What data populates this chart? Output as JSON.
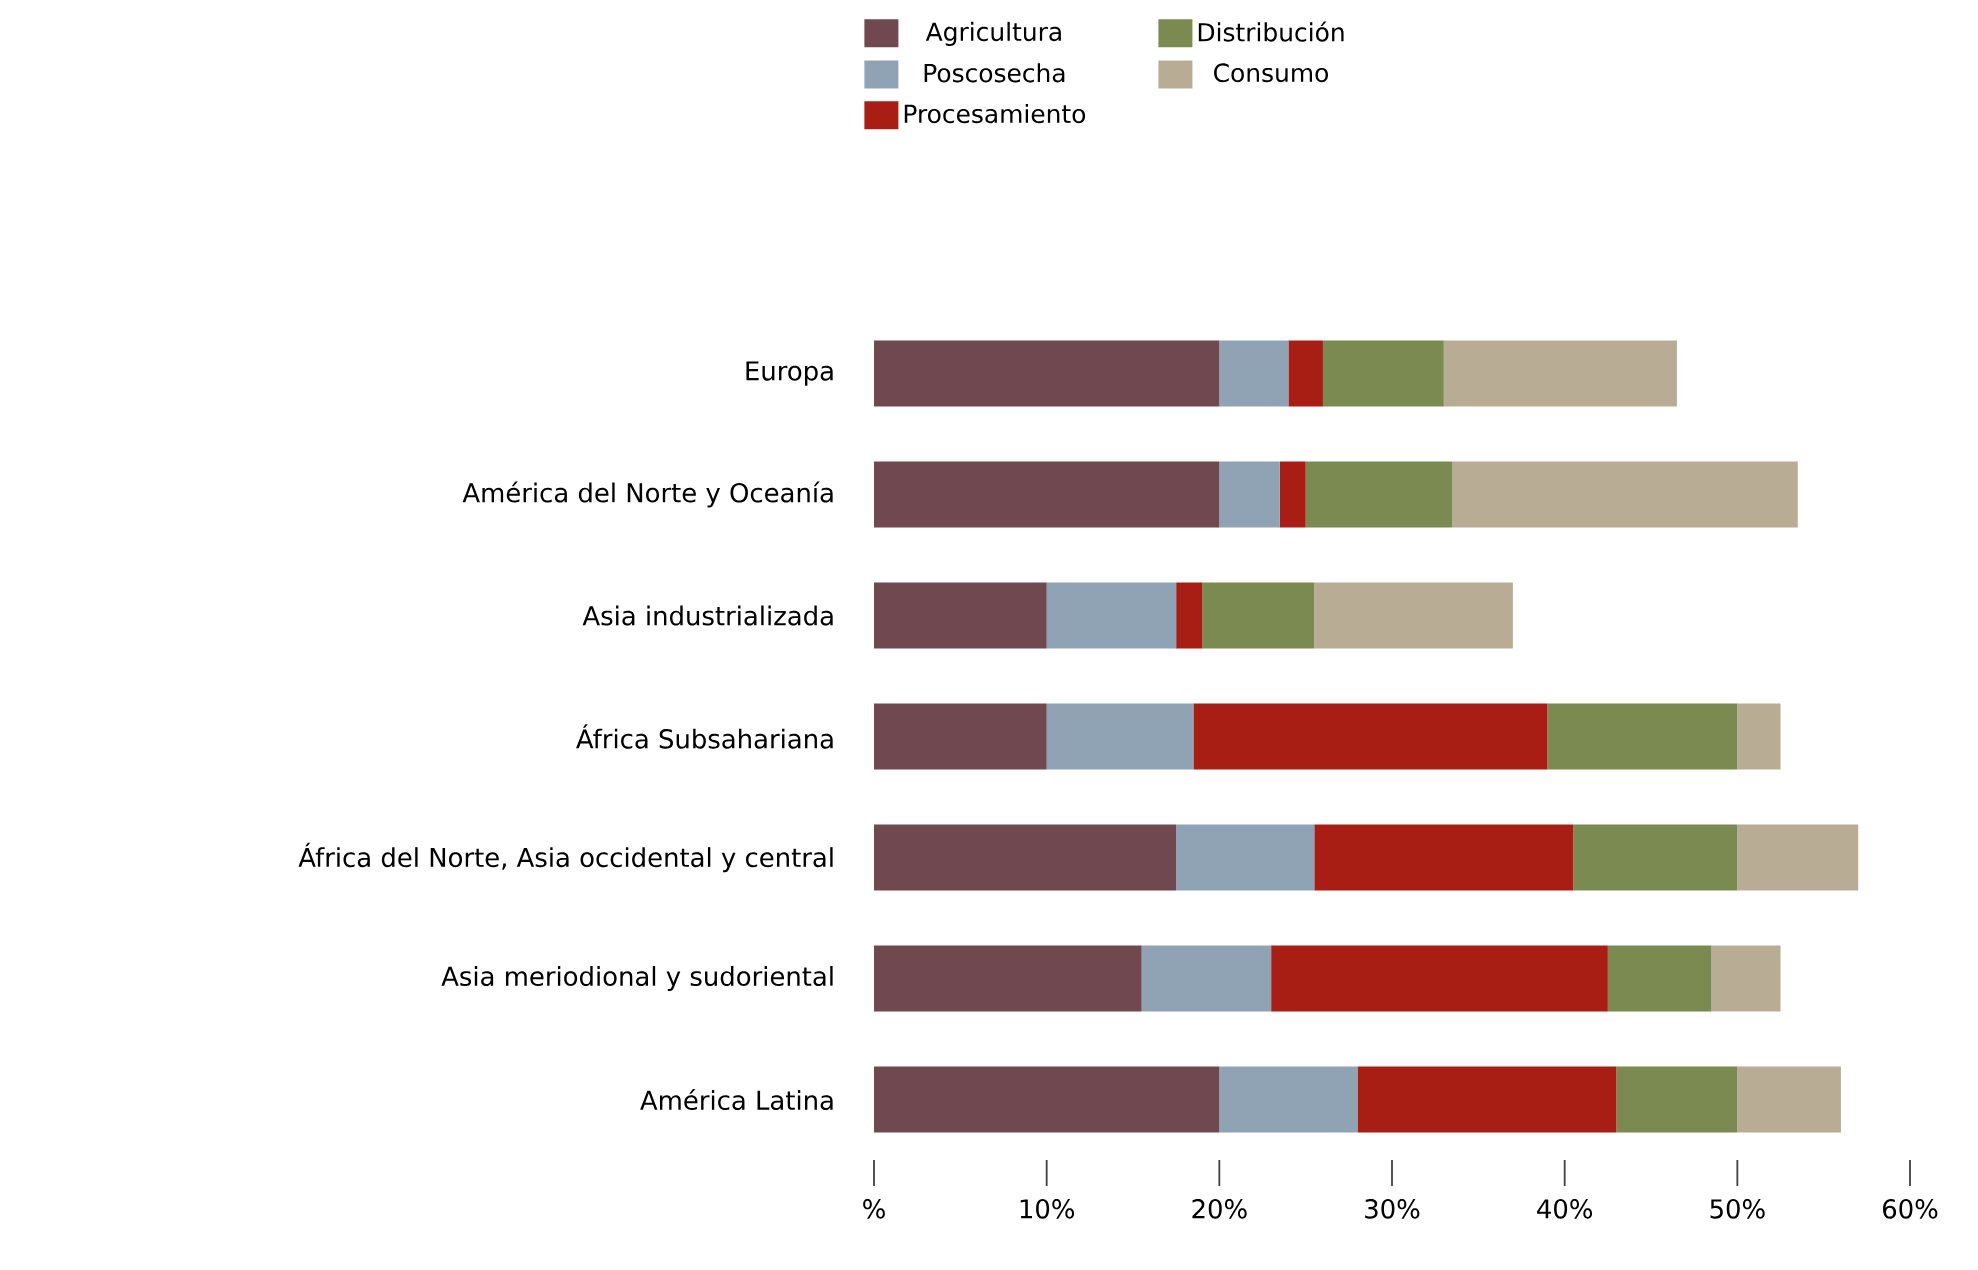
{
  "chart_data": {
    "type": "bar",
    "orientation": "horizontal",
    "stacked": true,
    "legend": "top",
    "categories": [
      "Europa",
      "América del Norte y Oceanía",
      "Asia industrializada",
      "África Subsahariana",
      "África del Norte, Asia occidental y central",
      "Asia meriodional y sudoriental",
      "América Latina"
    ],
    "series": [
      {
        "name": "Agricultura",
        "color": "#704850",
        "values": [
          20,
          20,
          10,
          10,
          17.5,
          15.5,
          20
        ]
      },
      {
        "name": "Poscosecha",
        "color": "#8fa3b4",
        "values": [
          4,
          3.5,
          7.5,
          8.5,
          8,
          7.5,
          8
        ]
      },
      {
        "name": "Procesamiento",
        "color": "#a81e14",
        "values": [
          2,
          1.5,
          1.5,
          20.5,
          15,
          19.5,
          15
        ]
      },
      {
        "name": "Distribución",
        "color": "#7a8a50",
        "values": [
          7,
          8.5,
          6.5,
          11,
          9.5,
          6,
          7
        ]
      },
      {
        "name": "Consumo",
        "color": "#b8ad94",
        "values": [
          13.5,
          20,
          11.5,
          2.5,
          7,
          4,
          6
        ]
      }
    ],
    "xlim": [
      0,
      60
    ],
    "xticks": [
      {
        "value": 0,
        "label": "%"
      },
      {
        "value": 10,
        "label": "10%"
      },
      {
        "value": 20,
        "label": "20%"
      },
      {
        "value": 30,
        "label": "30%"
      },
      {
        "value": 40,
        "label": "40%"
      },
      {
        "value": 50,
        "label": "50%"
      },
      {
        "value": 60,
        "label": "60%"
      }
    ]
  }
}
